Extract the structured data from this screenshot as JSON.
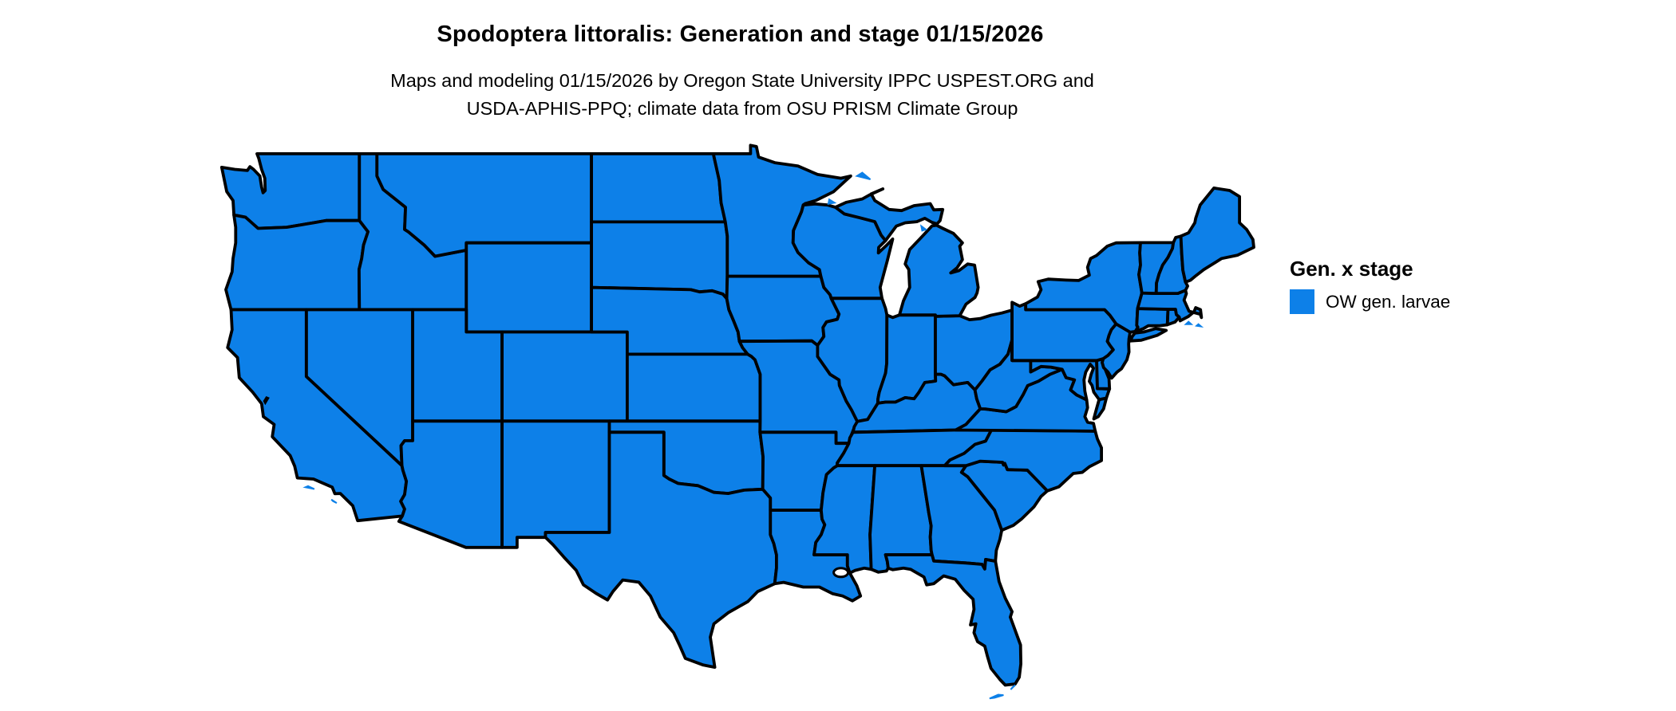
{
  "title": "Spodoptera littoralis: Generation and stage 01/15/2026",
  "subtitle": {
    "line1": "Maps and modeling 01/15/2026 by Oregon State University IPPC USPEST.ORG and",
    "line2": "USDA-APHIS-PPQ; climate data from OSU PRISM Climate Group"
  },
  "map": {
    "fill_color": "#0d80e8",
    "border_color": "#000000",
    "water_color": "#ffffff"
  },
  "legend": {
    "title": "Gen. x stage",
    "items": [
      {
        "label": "OW gen. larvae",
        "color": "#0d80e8"
      }
    ]
  }
}
